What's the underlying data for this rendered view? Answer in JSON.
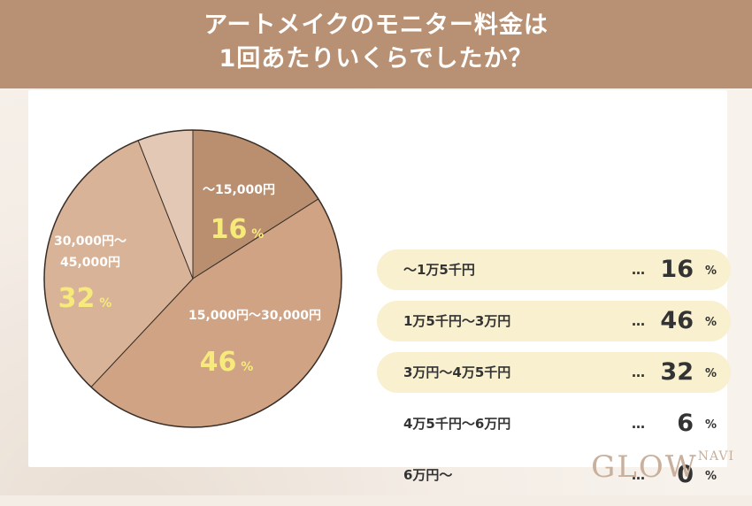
{
  "header": {
    "title_line1": "アートメイクのモニター料金は",
    "title_line2": "1回あたりいくらでしたか？"
  },
  "logo": {
    "main": "GLOW",
    "sub": "NAVI"
  },
  "chart_data": {
    "type": "pie",
    "slices": [
      {
        "label": "〜15,000円",
        "value": 16,
        "pct_unit": "%",
        "color": "#b98f6f"
      },
      {
        "label": "15,000円〜30,000円",
        "value": 46,
        "pct_unit": "%",
        "color": "#cfa383"
      },
      {
        "label": "30,000円〜\n45,000円",
        "label_lines": [
          "30,000円〜",
          "45,000円"
        ],
        "value": 32,
        "pct_unit": "%",
        "color": "#d8b397"
      },
      {
        "label": "",
        "value": 6,
        "pct_unit": "",
        "color": "#e3c9b5"
      }
    ],
    "value_color": "#f6ea7a",
    "label_color": "#ffffff"
  },
  "legend": [
    {
      "label": "〜1万5千円",
      "dots": "…",
      "value": "16",
      "unit": "%",
      "highlight": true
    },
    {
      "label": "1万5千円〜3万円",
      "dots": "…",
      "value": "46",
      "unit": "%",
      "highlight": true
    },
    {
      "label": "3万円〜4万5千円",
      "dots": "…",
      "value": "32",
      "unit": "%",
      "highlight": true
    },
    {
      "label": "4万5千円〜6万円",
      "dots": "…",
      "value": "6",
      "unit": "%",
      "highlight": false
    },
    {
      "label": "6万円〜",
      "dots": "…",
      "value": "0",
      "unit": "%",
      "highlight": false
    }
  ]
}
